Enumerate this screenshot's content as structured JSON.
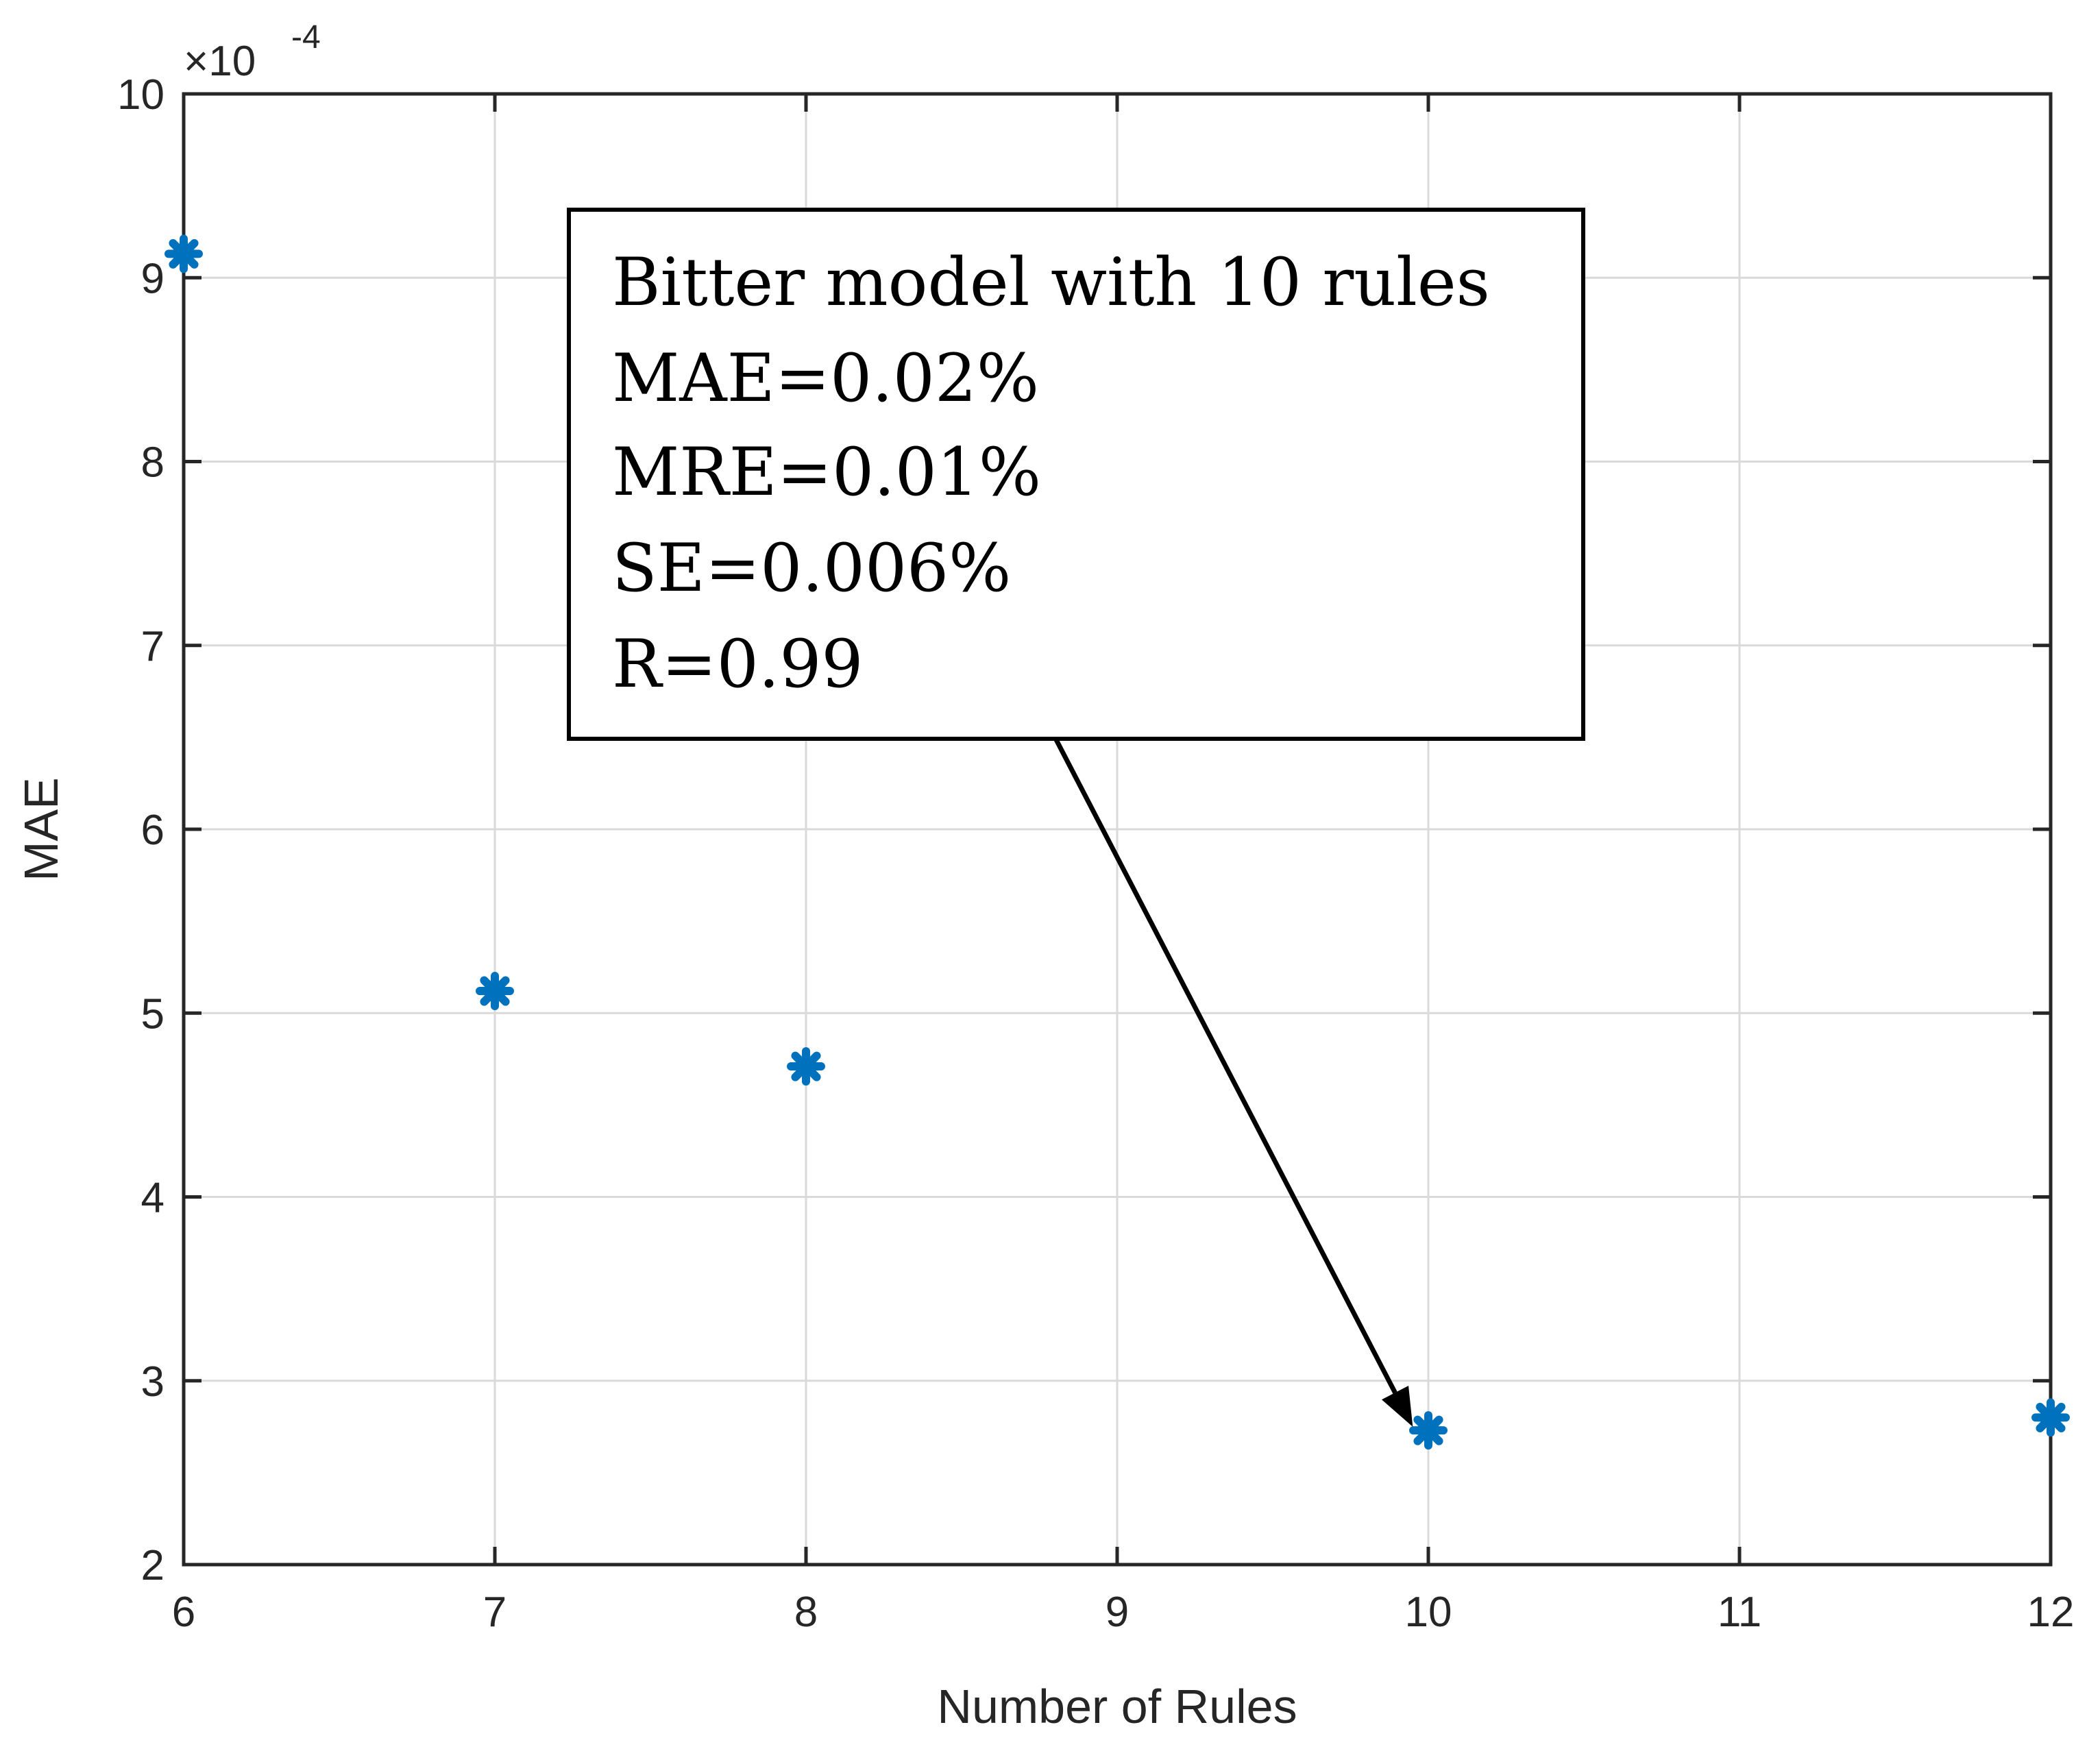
{
  "chart_data": {
    "type": "scatter",
    "title": "",
    "xlabel": "Number of Rules",
    "ylabel": "MAE",
    "xlim": [
      6,
      12
    ],
    "ylim": [
      2,
      10
    ],
    "y_scale_exponent_label": "×10",
    "y_scale_exponent_power": "-4",
    "xticks": [
      6,
      7,
      8,
      9,
      10,
      11,
      12
    ],
    "yticks": [
      2,
      3,
      4,
      5,
      6,
      7,
      8,
      9,
      10
    ],
    "grid": true,
    "marker": "asterisk",
    "marker_color": "#0072BD",
    "series": [
      {
        "name": "MAE",
        "x": [
          6,
          7,
          8,
          10,
          12
        ],
        "y": [
          9.13,
          5.12,
          4.71,
          2.73,
          2.8
        ]
      }
    ],
    "annotation": {
      "lines": [
        "Bitter model with 10 rules",
        "MAE=0.02%",
        "MRE=0.01%",
        "SE=0.006%",
        "R=0.99"
      ],
      "arrow_target": {
        "x": 9.95,
        "y": 2.75
      },
      "arrow_source": {
        "x": 8.8,
        "y": 6.5
      }
    }
  },
  "colors": {
    "axis": "#262626",
    "grid": "#dadada",
    "marker": "#0072BD",
    "annotation": "#000000"
  }
}
